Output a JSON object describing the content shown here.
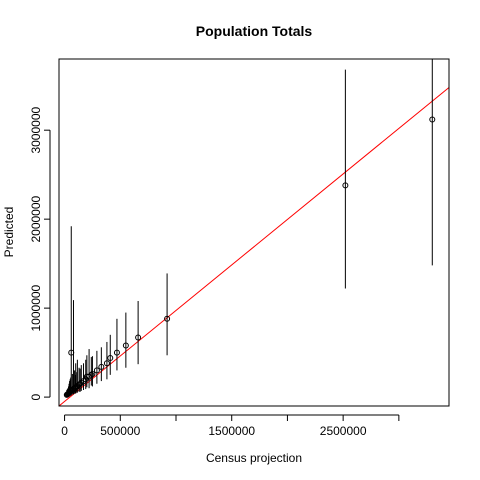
{
  "chart_data": {
    "type": "scatter",
    "title": "Population Totals",
    "xlabel": "Census projection",
    "ylabel": "Predicted",
    "xlim": [
      -50000,
      3450000
    ],
    "ylim": [
      -100000,
      3800000
    ],
    "xticks": [
      0,
      500000,
      1000000,
      1500000,
      2000000,
      2500000,
      3000000
    ],
    "xtick_labels": [
      "0",
      "500000",
      "",
      "1500000",
      "",
      "2500000",
      ""
    ],
    "yticks": [
      0,
      1000000,
      2000000,
      3000000
    ],
    "ytick_labels": [
      "0",
      "1000000",
      "2000000",
      "3000000"
    ],
    "reference_line": {
      "color": "#ff0000",
      "x": [
        -50000,
        3450000
      ],
      "y": [
        -100000,
        3480000
      ]
    },
    "colors": {
      "points": "#000000",
      "line": "#ff0000"
    },
    "points": [
      {
        "x": 3300000,
        "y": 3120000,
        "lo": 1480000,
        "hi": 3800000
      },
      {
        "x": 2520000,
        "y": 2380000,
        "lo": 1220000,
        "hi": 3680000
      },
      {
        "x": 920000,
        "y": 880000,
        "lo": 470000,
        "hi": 1390000
      },
      {
        "x": 660000,
        "y": 670000,
        "lo": 370000,
        "hi": 1080000
      },
      {
        "x": 550000,
        "y": 580000,
        "lo": 330000,
        "hi": 950000
      },
      {
        "x": 470000,
        "y": 500000,
        "lo": 300000,
        "hi": 880000
      },
      {
        "x": 410000,
        "y": 440000,
        "lo": 250000,
        "hi": 700000
      },
      {
        "x": 380000,
        "y": 380000,
        "lo": 200000,
        "hi": 620000
      },
      {
        "x": 330000,
        "y": 340000,
        "lo": 180000,
        "hi": 560000
      },
      {
        "x": 290000,
        "y": 300000,
        "lo": 150000,
        "hi": 520000
      },
      {
        "x": 250000,
        "y": 260000,
        "lo": 120000,
        "hi": 460000
      },
      {
        "x": 220000,
        "y": 230000,
        "lo": 100000,
        "hi": 540000
      },
      {
        "x": 190000,
        "y": 200000,
        "lo": 90000,
        "hi": 420000
      },
      {
        "x": 170000,
        "y": 180000,
        "lo": 80000,
        "hi": 380000
      },
      {
        "x": 150000,
        "y": 160000,
        "lo": 70000,
        "hi": 360000
      },
      {
        "x": 130000,
        "y": 140000,
        "lo": 60000,
        "hi": 330000
      },
      {
        "x": 115000,
        "y": 120000,
        "lo": 50000,
        "hi": 420000
      },
      {
        "x": 100000,
        "y": 110000,
        "lo": 40000,
        "hi": 380000
      },
      {
        "x": 90000,
        "y": 100000,
        "lo": 40000,
        "hi": 300000
      },
      {
        "x": 80000,
        "y": 90000,
        "lo": 30000,
        "hi": 1090000
      },
      {
        "x": 70000,
        "y": 80000,
        "lo": 30000,
        "hi": 260000
      },
      {
        "x": 60000,
        "y": 500000,
        "lo": 20000,
        "hi": 1920000
      },
      {
        "x": 55000,
        "y": 70000,
        "lo": 20000,
        "hi": 220000
      },
      {
        "x": 50000,
        "y": 60000,
        "lo": 15000,
        "hi": 200000
      },
      {
        "x": 45000,
        "y": 55000,
        "lo": 15000,
        "hi": 180000
      },
      {
        "x": 40000,
        "y": 45000,
        "lo": 10000,
        "hi": 150000
      },
      {
        "x": 35000,
        "y": 40000,
        "lo": 10000,
        "hi": 120000
      },
      {
        "x": 30000,
        "y": 35000,
        "lo": 8000,
        "hi": 100000
      },
      {
        "x": 25000,
        "y": 30000,
        "lo": 5000,
        "hi": 90000
      },
      {
        "x": 20000,
        "y": 25000,
        "lo": 5000,
        "hi": 80000
      },
      {
        "x": 200000,
        "y": 230000,
        "lo": 110000,
        "hi": 470000
      },
      {
        "x": 140000,
        "y": 150000,
        "lo": 60000,
        "hi": 320000
      },
      {
        "x": 110000,
        "y": 125000,
        "lo": 50000,
        "hi": 280000
      },
      {
        "x": 95000,
        "y": 100000,
        "lo": 40000,
        "hi": 250000
      },
      {
        "x": 240000,
        "y": 250000,
        "lo": 130000,
        "hi": 450000
      }
    ]
  }
}
